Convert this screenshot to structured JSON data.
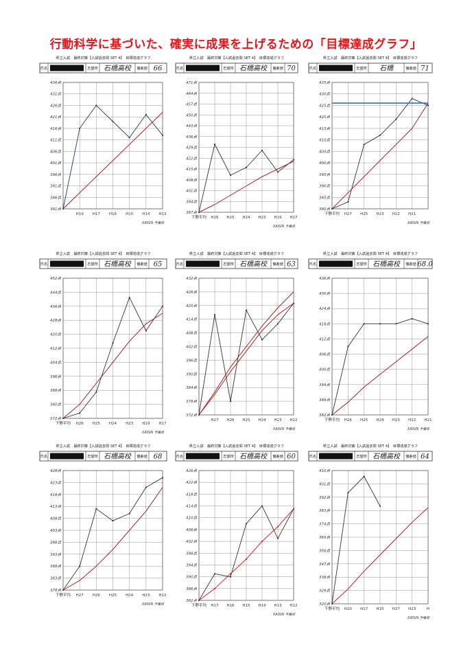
{
  "page": {
    "title": "行動科学に基づいた、確実に成果を上げるための「目標達成グラフ」",
    "header_text": "県立入試　最終対策【入試過去問 SET 4】　目標達成グラフ",
    "label_name": "氏名",
    "label_school": "志望校",
    "label_hensachi": "偏差値",
    "credit": "KAISIN 予備校",
    "first_tick": "下野平均"
  },
  "colors": {
    "score_line": "#333333",
    "target_line": "#a82020",
    "target_bright": "#e02020",
    "blue_line": "#2d6fd1",
    "navy_line": "#1f3a5f",
    "grid": "#777777",
    "title_red": "#e8141a"
  },
  "chart_data": [
    {
      "type": "line",
      "student_school": "石橋高校",
      "student_hensachi": "66",
      "y_ticks": [
        "381点",
        "386点",
        "391点",
        "396点",
        "401点",
        "406点",
        "411点",
        "416点",
        "421点",
        "426点",
        "431点",
        "436点"
      ],
      "categories": [
        "",
        "H19",
        "H17",
        "H16",
        "H15",
        "H14",
        "H13"
      ],
      "series": [
        {
          "role": "score",
          "values": [
            381,
            416,
            426,
            419,
            412,
            422,
            413
          ]
        },
        {
          "role": "target",
          "values": [
            381,
            388,
            395,
            402,
            409,
            416,
            423
          ]
        }
      ]
    },
    {
      "type": "line",
      "student_school": "石橋高校",
      "student_hensachi": "70",
      "y_ticks": [
        "387点",
        "394点",
        "401点",
        "408点",
        "415点",
        "422点",
        "429点",
        "436点",
        "443点",
        "450点",
        "457点",
        "464点",
        "471点"
      ],
      "categories": [
        "下野平均",
        "H26",
        "H25",
        "H24",
        "H23",
        "H19",
        "H27"
      ],
      "series": [
        {
          "role": "score",
          "values": [
            387,
            431,
            411,
            416,
            427,
            413,
            421
          ]
        },
        {
          "role": "target",
          "values": [
            387,
            392,
            398,
            404,
            410,
            415,
            420
          ]
        }
      ]
    },
    {
      "type": "line",
      "student_school": "石橋",
      "student_hensachi": "71",
      "y_ticks": [
        "380点",
        "385点",
        "390点",
        "395点",
        "400点",
        "405点",
        "410点",
        "415点",
        "420点",
        "425点",
        "430点",
        "435点"
      ],
      "categories": [
        "下野平均",
        "H27",
        "H25",
        "H23",
        "H22",
        "H21",
        ""
      ],
      "series": [
        {
          "role": "score",
          "values": [
            380,
            383,
            408,
            412,
            419,
            428,
            425
          ]
        },
        {
          "role": "target",
          "values": [
            380,
            387,
            394,
            401,
            408,
            415,
            426
          ]
        },
        {
          "role": "goal",
          "values": [
            426,
            426,
            426,
            426,
            426,
            426,
            426
          ]
        }
      ]
    },
    {
      "type": "line",
      "student_school": "石橋高校",
      "student_hensachi": "65",
      "y_ticks": [
        "372点",
        "380点",
        "388点",
        "396点",
        "404点",
        "412点",
        "420点",
        "428点",
        "436点",
        "444点",
        "452点"
      ],
      "categories": [
        "下野平均",
        "H26",
        "H25",
        "H24",
        "H23",
        "H19",
        "H17"
      ],
      "series": [
        {
          "role": "score",
          "values": [
            372,
            375,
            387,
            415,
            441,
            422,
            436
          ]
        },
        {
          "role": "target",
          "values": [
            372,
            380,
            392,
            404,
            416,
            426,
            432
          ]
        }
      ]
    },
    {
      "type": "line",
      "student_school": "石橋高校",
      "student_hensachi": "63",
      "y_ticks": [
        "372点",
        "378点",
        "384点",
        "390点",
        "396点",
        "402点",
        "408点",
        "414点",
        "420点",
        "426点",
        "432点"
      ],
      "categories": [
        "",
        "H27",
        "H26",
        "H25",
        "H24",
        "H23",
        "H22"
      ],
      "series": [
        {
          "role": "score",
          "values": [
            372,
            416,
            378,
            418,
            405,
            412,
            421
          ]
        },
        {
          "role": "target",
          "values": [
            372,
            381,
            391,
            400,
            409,
            416,
            421
          ]
        },
        {
          "role": "target2",
          "values": [
            372,
            382,
            393,
            402,
            411,
            419,
            426
          ]
        }
      ]
    },
    {
      "type": "line",
      "student_school": "石橋高校",
      "student_hensachi": "68.0",
      "y_ticks": [
        "382点",
        "388点",
        "394点",
        "400点",
        "406点",
        "412点",
        "418点",
        "424点",
        "430点",
        "436点"
      ],
      "categories": [
        "下野平均",
        "H26",
        "H25",
        "H24",
        "H23",
        "H22",
        "H21"
      ],
      "series": [
        {
          "role": "score",
          "values": [
            382,
            409,
            418,
            418,
            418,
            420,
            418
          ]
        },
        {
          "role": "target",
          "values": [
            382,
            387,
            393,
            398,
            403,
            408,
            413
          ]
        }
      ]
    },
    {
      "type": "line",
      "student_school": "石橋高校",
      "student_hensachi": "68",
      "y_ticks": [
        "378点",
        "383点",
        "388点",
        "393点",
        "398点",
        "403点",
        "408点",
        "413点",
        "418点",
        "423点",
        "428点"
      ],
      "categories": [
        "下野平均",
        "H27",
        "H26",
        "H25",
        "H24",
        "H23",
        "H22"
      ],
      "series": [
        {
          "role": "score",
          "values": [
            378,
            388,
            412,
            407,
            410,
            421,
            425
          ]
        },
        {
          "role": "target",
          "values": [
            378,
            382,
            388,
            395,
            403,
            411,
            421
          ]
        }
      ]
    },
    {
      "type": "line",
      "student_school": "石橋高校",
      "student_hensachi": "60",
      "y_ticks": [
        "382点",
        "386点",
        "390点",
        "394点",
        "398点",
        "402点",
        "406点",
        "410点",
        "414点",
        "418点",
        "422点",
        "426点"
      ],
      "categories": [
        "下野平均",
        "H17",
        "H16",
        "H15",
        "H14",
        "H13",
        "H12"
      ],
      "series": [
        {
          "role": "score",
          "values": [
            382,
            391,
            390,
            408,
            414,
            403,
            413
          ]
        },
        {
          "role": "target",
          "values": [
            382,
            386,
            391,
            396,
            402,
            407,
            413
          ]
        }
      ]
    },
    {
      "type": "line",
      "student_school": "石橋高校",
      "student_hensachi": "64",
      "y_ticks": [
        "320点",
        "329点",
        "338点",
        "347点",
        "356点",
        "365点",
        "374点",
        "383点",
        "392点",
        "401点",
        "410点"
      ],
      "categories": [
        "下野平均",
        "H20",
        "H17",
        "H15",
        "H27",
        "H23",
        "H"
      ],
      "series": [
        {
          "role": "score",
          "values": [
            320,
            395,
            406,
            386,
            null,
            null,
            null
          ]
        },
        {
          "role": "target",
          "values": [
            320,
            330,
            342,
            353,
            364,
            375,
            385
          ]
        }
      ]
    }
  ]
}
